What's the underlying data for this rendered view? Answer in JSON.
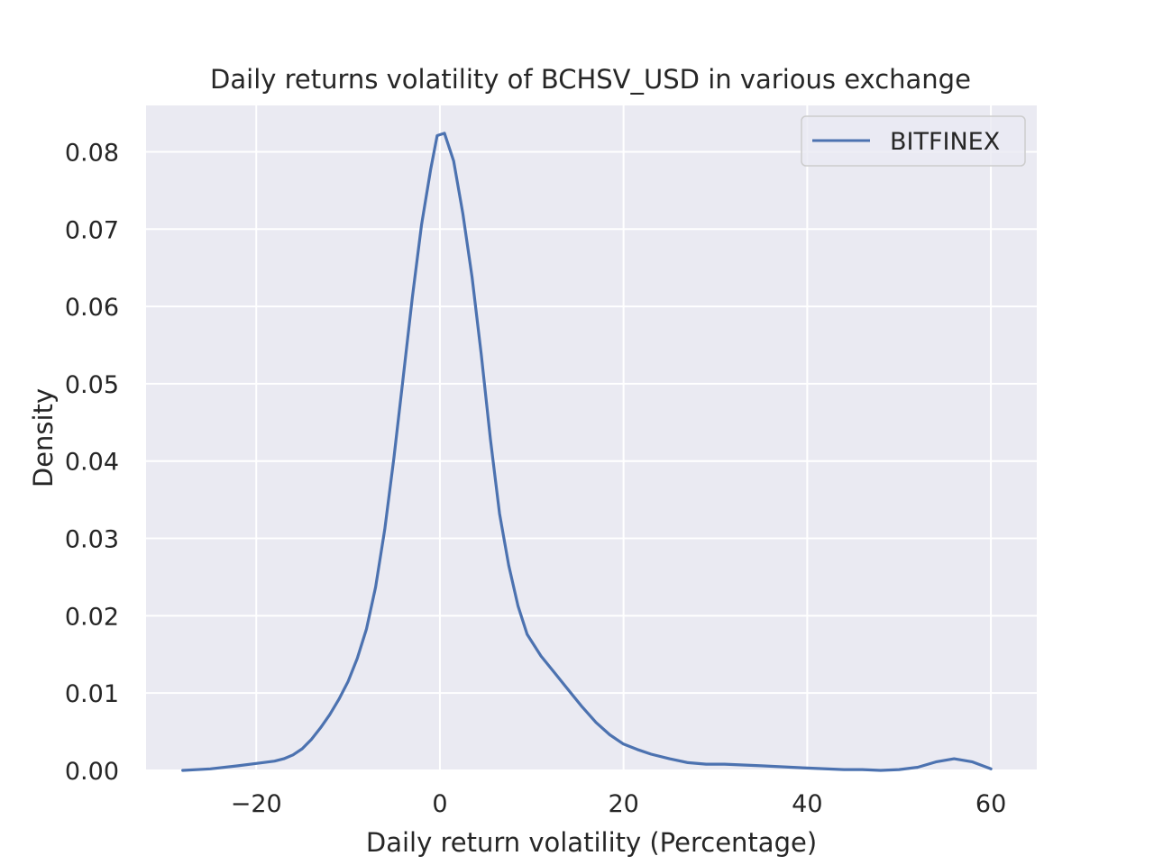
{
  "chart_data": {
    "type": "line",
    "title": "Daily returns volatility of BCHSV_USD in various exchange",
    "xlabel": "Daily return volatility (Percentage)",
    "ylabel": "Density",
    "xlim": [
      -32,
      65
    ],
    "ylim": [
      0,
      0.086
    ],
    "xticks": [
      -20,
      0,
      20,
      40,
      60
    ],
    "xtick_labels": [
      "−20",
      "0",
      "20",
      "40",
      "60"
    ],
    "yticks": [
      0,
      0.01,
      0.02,
      0.03,
      0.04,
      0.05,
      0.06,
      0.07,
      0.08
    ],
    "ytick_labels": [
      "0.00",
      "0.01",
      "0.02",
      "0.03",
      "0.04",
      "0.05",
      "0.06",
      "0.07",
      "0.08"
    ],
    "grid": true,
    "legend_position": "top-right",
    "series": [
      {
        "name": "BITFINEX",
        "color": "#4c72b0",
        "x": [
          -28,
          -25,
          -22,
          -20,
          -18,
          -17,
          -16,
          -15,
          -14,
          -13,
          -12,
          -11,
          -10,
          -9,
          -8,
          -7,
          -6,
          -5,
          -4,
          -3,
          -2,
          -1,
          -0.3,
          0.5,
          1.5,
          2.5,
          3.5,
          4.5,
          5.5,
          6.5,
          7.5,
          8.5,
          9.5,
          11,
          12.5,
          14,
          15.5,
          17,
          18.5,
          20,
          21.5,
          23,
          25,
          27,
          29,
          31,
          35,
          40,
          44,
          46,
          48,
          50,
          52,
          54,
          56,
          58,
          60
        ],
        "y": [
          0,
          0.0002,
          0.0006,
          0.0009,
          0.0012,
          0.0015,
          0.002,
          0.0028,
          0.004,
          0.0055,
          0.0072,
          0.0092,
          0.0115,
          0.0145,
          0.0183,
          0.0237,
          0.0312,
          0.0405,
          0.0508,
          0.0612,
          0.0706,
          0.0778,
          0.0821,
          0.0824,
          0.0788,
          0.072,
          0.0638,
          0.0538,
          0.0428,
          0.0332,
          0.0265,
          0.0213,
          0.0176,
          0.0148,
          0.0126,
          0.0104,
          0.0082,
          0.0062,
          0.0046,
          0.0034,
          0.0027,
          0.0021,
          0.0015,
          0.001,
          0.0008,
          0.0008,
          0.0006,
          0.0003,
          0.0001,
          0.0001,
          0,
          0.0001,
          0.0004,
          0.0011,
          0.0015,
          0.0011,
          0.0002
        ]
      }
    ]
  }
}
